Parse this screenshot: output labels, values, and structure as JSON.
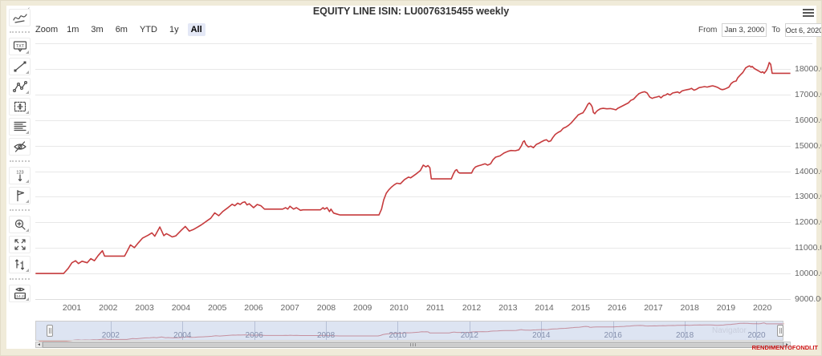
{
  "title": "EQUITY LINE ISIN: LU0076315455 weekly",
  "menu": {
    "button": "hamburger-menu"
  },
  "range_selector": {
    "zoom_label": "Zoom",
    "buttons": [
      "1m",
      "3m",
      "6m",
      "YTD",
      "1y",
      "All"
    ],
    "selected": "All",
    "from_label": "From",
    "from_value": "Jan 3, 2000",
    "to_label": "To",
    "to_value": "Oct 6, 2020"
  },
  "toolbar": {
    "items": [
      {
        "name": "indicators",
        "submenu": false
      },
      {
        "name": "separator"
      },
      {
        "name": "annotation-label",
        "submenu": true
      },
      {
        "name": "segment-line",
        "submenu": true
      },
      {
        "name": "crooked-line",
        "submenu": true
      },
      {
        "name": "measure",
        "submenu": true
      },
      {
        "name": "fibonacci",
        "submenu": true
      },
      {
        "name": "toggle-annotations",
        "submenu": false
      },
      {
        "name": "separator"
      },
      {
        "name": "vertical-labels",
        "submenu": true
      },
      {
        "name": "flags",
        "submenu": true
      },
      {
        "name": "separator"
      },
      {
        "name": "zoom-change",
        "submenu": true
      },
      {
        "name": "full-screen",
        "submenu": false
      },
      {
        "name": "series-type",
        "submenu": true
      },
      {
        "name": "separator"
      },
      {
        "name": "current-price-indicator",
        "submenu": true
      }
    ]
  },
  "chart_data": {
    "type": "line",
    "title": "EQUITY LINE ISIN: LU0076315455 weekly",
    "series_name": "equity-line",
    "line_color": "#c63b3d",
    "xlabel": "",
    "ylabel": "",
    "ylim": [
      9000,
      18500
    ],
    "x_range_years": [
      2000.0,
      2020.77
    ],
    "y_ticks": [
      9000,
      10000,
      11000,
      12000,
      13000,
      14000,
      15000,
      16000,
      17000,
      18000
    ],
    "y_tick_format": "#.00",
    "x_ticks": [
      2001,
      2002,
      2003,
      2004,
      2005,
      2006,
      2007,
      2008,
      2009,
      2010,
      2011,
      2012,
      2013,
      2014,
      2015,
      2016,
      2017,
      2018,
      2019,
      2020
    ],
    "grid": "horizontal-only",
    "points": [
      [
        2000.0,
        10000
      ],
      [
        2000.77,
        10000
      ],
      [
        2000.9,
        10200
      ],
      [
        2001.0,
        10420
      ],
      [
        2001.1,
        10500
      ],
      [
        2001.18,
        10390
      ],
      [
        2001.28,
        10480
      ],
      [
        2001.42,
        10420
      ],
      [
        2001.52,
        10580
      ],
      [
        2001.62,
        10500
      ],
      [
        2001.72,
        10700
      ],
      [
        2001.84,
        10890
      ],
      [
        2001.9,
        10680
      ],
      [
        2002.45,
        10680
      ],
      [
        2002.52,
        10870
      ],
      [
        2002.61,
        11120
      ],
      [
        2002.72,
        11010
      ],
      [
        2002.83,
        11200
      ],
      [
        2002.94,
        11380
      ],
      [
        2003.1,
        11500
      ],
      [
        2003.2,
        11590
      ],
      [
        2003.28,
        11460
      ],
      [
        2003.42,
        11820
      ],
      [
        2003.53,
        11480
      ],
      [
        2003.6,
        11560
      ],
      [
        2003.68,
        11500
      ],
      [
        2003.76,
        11430
      ],
      [
        2003.86,
        11470
      ],
      [
        2004.01,
        11690
      ],
      [
        2004.12,
        11840
      ],
      [
        2004.23,
        11660
      ],
      [
        2004.34,
        11720
      ],
      [
        2004.45,
        11810
      ],
      [
        2004.56,
        11900
      ],
      [
        2004.71,
        12050
      ],
      [
        2004.82,
        12160
      ],
      [
        2004.93,
        12370
      ],
      [
        2005.04,
        12260
      ],
      [
        2005.15,
        12420
      ],
      [
        2005.3,
        12580
      ],
      [
        2005.41,
        12710
      ],
      [
        2005.48,
        12650
      ],
      [
        2005.56,
        12750
      ],
      [
        2005.63,
        12700
      ],
      [
        2005.7,
        12780
      ],
      [
        2005.76,
        12800
      ],
      [
        2005.82,
        12680
      ],
      [
        2005.88,
        12730
      ],
      [
        2006.0,
        12575
      ],
      [
        2006.1,
        12700
      ],
      [
        2006.2,
        12650
      ],
      [
        2006.3,
        12520
      ],
      [
        2006.8,
        12520
      ],
      [
        2006.88,
        12575
      ],
      [
        2006.94,
        12520
      ],
      [
        2007.0,
        12630
      ],
      [
        2007.1,
        12520
      ],
      [
        2007.18,
        12575
      ],
      [
        2007.29,
        12470
      ],
      [
        2007.36,
        12490
      ],
      [
        2007.84,
        12490
      ],
      [
        2007.91,
        12575
      ],
      [
        2007.95,
        12520
      ],
      [
        2008.02,
        12575
      ],
      [
        2008.09,
        12420
      ],
      [
        2008.13,
        12520
      ],
      [
        2008.2,
        12365
      ],
      [
        2008.28,
        12330
      ],
      [
        2008.38,
        12290
      ],
      [
        2009.45,
        12290
      ],
      [
        2009.52,
        12520
      ],
      [
        2009.58,
        12880
      ],
      [
        2009.65,
        13140
      ],
      [
        2009.72,
        13270
      ],
      [
        2009.79,
        13375
      ],
      [
        2009.86,
        13460
      ],
      [
        2009.94,
        13530
      ],
      [
        2010.04,
        13510
      ],
      [
        2010.15,
        13670
      ],
      [
        2010.26,
        13770
      ],
      [
        2010.32,
        13740
      ],
      [
        2010.4,
        13820
      ],
      [
        2010.48,
        13900
      ],
      [
        2010.59,
        14030
      ],
      [
        2010.67,
        14240
      ],
      [
        2010.74,
        14170
      ],
      [
        2010.8,
        14220
      ],
      [
        2010.85,
        14140
      ],
      [
        2010.89,
        13700
      ],
      [
        2011.44,
        13700
      ],
      [
        2011.5,
        13900
      ],
      [
        2011.55,
        14030
      ],
      [
        2011.59,
        14060
      ],
      [
        2011.63,
        13960
      ],
      [
        2011.67,
        13930
      ],
      [
        2012.0,
        13930
      ],
      [
        2012.05,
        14080
      ],
      [
        2012.11,
        14170
      ],
      [
        2012.18,
        14210
      ],
      [
        2012.26,
        14240
      ],
      [
        2012.37,
        14290
      ],
      [
        2012.44,
        14240
      ],
      [
        2012.52,
        14290
      ],
      [
        2012.59,
        14450
      ],
      [
        2012.66,
        14550
      ],
      [
        2012.78,
        14600
      ],
      [
        2012.89,
        14710
      ],
      [
        2013.0,
        14780
      ],
      [
        2013.08,
        14810
      ],
      [
        2013.2,
        14800
      ],
      [
        2013.3,
        14840
      ],
      [
        2013.37,
        15000
      ],
      [
        2013.42,
        15160
      ],
      [
        2013.45,
        15190
      ],
      [
        2013.49,
        15050
      ],
      [
        2013.56,
        14950
      ],
      [
        2013.63,
        14980
      ],
      [
        2013.7,
        14920
      ],
      [
        2013.78,
        15050
      ],
      [
        2013.86,
        15100
      ],
      [
        2013.93,
        15160
      ],
      [
        2014.0,
        15210
      ],
      [
        2014.06,
        15230
      ],
      [
        2014.12,
        15160
      ],
      [
        2014.18,
        15190
      ],
      [
        2014.23,
        15310
      ],
      [
        2014.3,
        15440
      ],
      [
        2014.38,
        15520
      ],
      [
        2014.45,
        15570
      ],
      [
        2014.52,
        15680
      ],
      [
        2014.6,
        15730
      ],
      [
        2014.67,
        15800
      ],
      [
        2014.74,
        15890
      ],
      [
        2014.82,
        16020
      ],
      [
        2014.89,
        16130
      ],
      [
        2014.93,
        16200
      ],
      [
        2015.0,
        16250
      ],
      [
        2015.06,
        16280
      ],
      [
        2015.12,
        16410
      ],
      [
        2015.2,
        16620
      ],
      [
        2015.24,
        16670
      ],
      [
        2015.28,
        16610
      ],
      [
        2015.32,
        16510
      ],
      [
        2015.35,
        16300
      ],
      [
        2015.39,
        16250
      ],
      [
        2015.43,
        16330
      ],
      [
        2015.47,
        16380
      ],
      [
        2015.54,
        16440
      ],
      [
        2015.62,
        16460
      ],
      [
        2015.72,
        16440
      ],
      [
        2015.82,
        16450
      ],
      [
        2015.9,
        16430
      ],
      [
        2015.97,
        16400
      ],
      [
        2016.02,
        16460
      ],
      [
        2016.09,
        16510
      ],
      [
        2016.16,
        16560
      ],
      [
        2016.24,
        16620
      ],
      [
        2016.31,
        16670
      ],
      [
        2016.38,
        16770
      ],
      [
        2016.46,
        16820
      ],
      [
        2016.53,
        16930
      ],
      [
        2016.6,
        17030
      ],
      [
        2016.68,
        17080
      ],
      [
        2016.76,
        17110
      ],
      [
        2016.83,
        17060
      ],
      [
        2016.9,
        16900
      ],
      [
        2016.97,
        16850
      ],
      [
        2017.02,
        16880
      ],
      [
        2017.08,
        16900
      ],
      [
        2017.16,
        16930
      ],
      [
        2017.21,
        16870
      ],
      [
        2017.28,
        16960
      ],
      [
        2017.34,
        16980
      ],
      [
        2017.39,
        17030
      ],
      [
        2017.46,
        16980
      ],
      [
        2017.53,
        17060
      ],
      [
        2017.6,
        17080
      ],
      [
        2017.67,
        17100
      ],
      [
        2017.72,
        17060
      ],
      [
        2017.79,
        17140
      ],
      [
        2017.86,
        17170
      ],
      [
        2017.93,
        17190
      ],
      [
        2018.0,
        17210
      ],
      [
        2018.05,
        17240
      ],
      [
        2018.12,
        17170
      ],
      [
        2018.19,
        17210
      ],
      [
        2018.26,
        17270
      ],
      [
        2018.34,
        17290
      ],
      [
        2018.41,
        17310
      ],
      [
        2018.48,
        17290
      ],
      [
        2018.56,
        17320
      ],
      [
        2018.63,
        17340
      ],
      [
        2018.71,
        17310
      ],
      [
        2018.78,
        17270
      ],
      [
        2018.85,
        17210
      ],
      [
        2018.9,
        17190
      ],
      [
        2018.96,
        17210
      ],
      [
        2019.01,
        17240
      ],
      [
        2019.08,
        17290
      ],
      [
        2019.14,
        17430
      ],
      [
        2019.21,
        17500
      ],
      [
        2019.28,
        17530
      ],
      [
        2019.32,
        17650
      ],
      [
        2019.39,
        17760
      ],
      [
        2019.46,
        17860
      ],
      [
        2019.54,
        18040
      ],
      [
        2019.61,
        18100
      ],
      [
        2019.65,
        18120
      ],
      [
        2019.69,
        18070
      ],
      [
        2019.72,
        18100
      ],
      [
        2019.76,
        18040
      ],
      [
        2019.8,
        18000
      ],
      [
        2019.9,
        17920
      ],
      [
        2019.97,
        17860
      ],
      [
        2020.01,
        17890
      ],
      [
        2020.05,
        17830
      ],
      [
        2020.11,
        17940
      ],
      [
        2020.15,
        18070
      ],
      [
        2020.19,
        18250
      ],
      [
        2020.23,
        18180
      ],
      [
        2020.27,
        17830
      ],
      [
        2020.77,
        17830
      ]
    ],
    "navigator": {
      "tick_years": [
        2002,
        2004,
        2006,
        2008,
        2010,
        2012,
        2014,
        2016,
        2018,
        2020
      ],
      "watermark": "Navigator",
      "mask_color": "rgba(102,133,194,0.22)"
    },
    "legend": "off"
  },
  "watermark_site": "RENDIMENTOFONDI.IT"
}
